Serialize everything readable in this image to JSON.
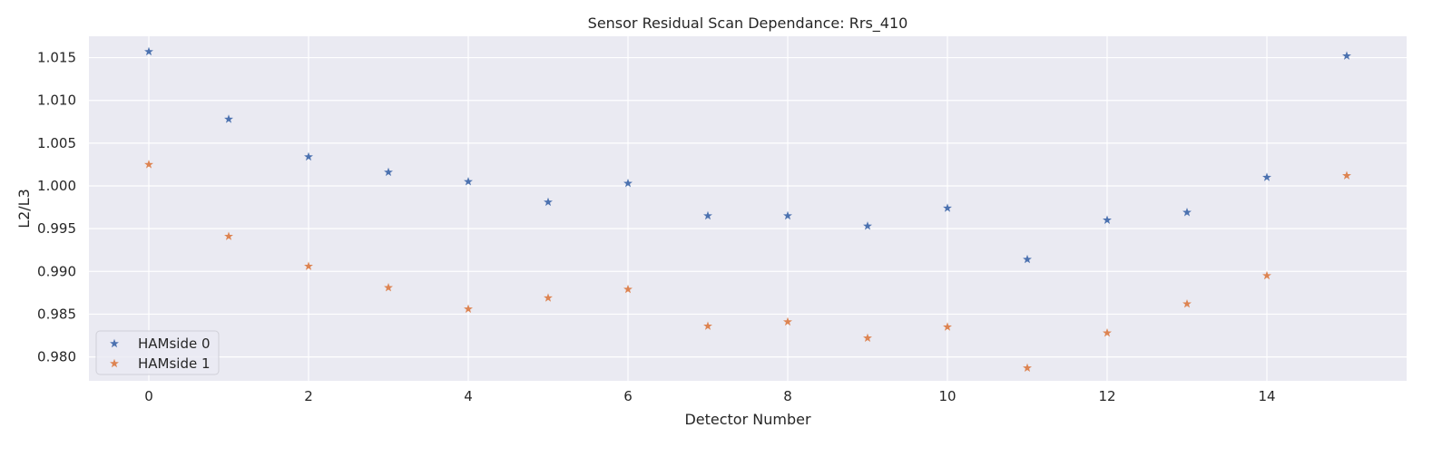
{
  "chart_data": {
    "type": "scatter",
    "title": "Sensor Residual Scan Dependance: Rrs_410",
    "xlabel": "Detector Number",
    "ylabel": "L2/L3",
    "xlim": [
      -0.75,
      15.75
    ],
    "ylim": [
      0.9772,
      1.0175
    ],
    "x_ticks": [
      0,
      2,
      4,
      6,
      8,
      10,
      12,
      14
    ],
    "y_ticks": [
      0.98,
      0.985,
      0.99,
      0.995,
      1.0,
      1.005,
      1.01,
      1.015
    ],
    "y_tick_labels": [
      "0.980",
      "0.985",
      "0.990",
      "0.995",
      "1.000",
      "1.005",
      "1.010",
      "1.015"
    ],
    "grid": true,
    "legend_position": "lower-left",
    "marker": "star",
    "x": [
      0,
      1,
      2,
      3,
      4,
      5,
      6,
      7,
      8,
      9,
      10,
      11,
      12,
      13,
      14,
      15
    ],
    "series": [
      {
        "name": "HAMside 0",
        "color": "#4c72b0",
        "values": [
          1.0157,
          1.0078,
          1.0034,
          1.0016,
          1.0005,
          0.9981,
          1.0003,
          0.9965,
          0.9965,
          0.9953,
          0.9974,
          0.9914,
          0.996,
          0.9969,
          1.001,
          1.0152
        ]
      },
      {
        "name": "HAMside 1",
        "color": "#dd8452",
        "values": [
          1.0025,
          0.9941,
          0.9906,
          0.9881,
          0.9856,
          0.9869,
          0.9879,
          0.9836,
          0.9841,
          0.9822,
          0.9835,
          0.9787,
          0.9828,
          0.9862,
          0.9895,
          1.0012
        ]
      }
    ],
    "style": {
      "plot_background": "#eaeaf2",
      "grid_color": "#ffffff"
    }
  }
}
